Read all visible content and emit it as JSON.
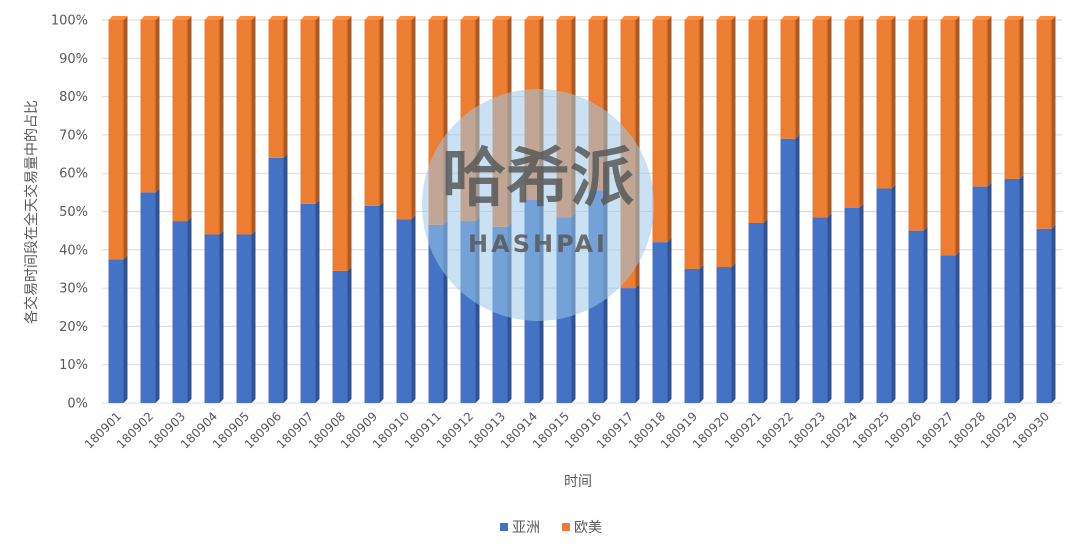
{
  "chart_data": {
    "type": "bar",
    "stacked": "percent",
    "title": "",
    "xlabel": "时间",
    "ylabel": "各交易时间段在全天交易量中的占比",
    "ylim": [
      0,
      100
    ],
    "yticks": [
      "0%",
      "10%",
      "20%",
      "30%",
      "40%",
      "50%",
      "60%",
      "70%",
      "80%",
      "90%",
      "100%"
    ],
    "categories": [
      "180901",
      "180902",
      "180903",
      "180904",
      "180905",
      "180906",
      "180907",
      "180908",
      "180909",
      "180910",
      "180911",
      "180912",
      "180913",
      "180914",
      "180915",
      "180916",
      "180917",
      "180918",
      "180919",
      "180920",
      "180921",
      "180922",
      "180923",
      "180924",
      "180925",
      "180926",
      "180927",
      "180928",
      "180929",
      "180930"
    ],
    "series": [
      {
        "name": "亚洲",
        "color": "#4472C4",
        "values": [
          37.5,
          55,
          47.5,
          44,
          44,
          64,
          52,
          34.5,
          51.5,
          48,
          46.5,
          47.5,
          46,
          53,
          48.5,
          55.5,
          30,
          42,
          35,
          35.5,
          47,
          69,
          48.5,
          51,
          56,
          45,
          38.5,
          56.5,
          58.5,
          45.5
        ]
      },
      {
        "name": "欧美",
        "color": "#ED7D31",
        "values": [
          62.5,
          45,
          52.5,
          56,
          56,
          36,
          48,
          65.5,
          48.5,
          52,
          53.5,
          52.5,
          54,
          47,
          51.5,
          44.5,
          70,
          58,
          65,
          64.5,
          53,
          31,
          51.5,
          49,
          44,
          55,
          61.5,
          43.5,
          41.5,
          54.5
        ]
      }
    ],
    "grid": true,
    "legend_position": "bottom",
    "watermark": {
      "text": "哈希派",
      "subtext": "HASHPAI"
    }
  }
}
